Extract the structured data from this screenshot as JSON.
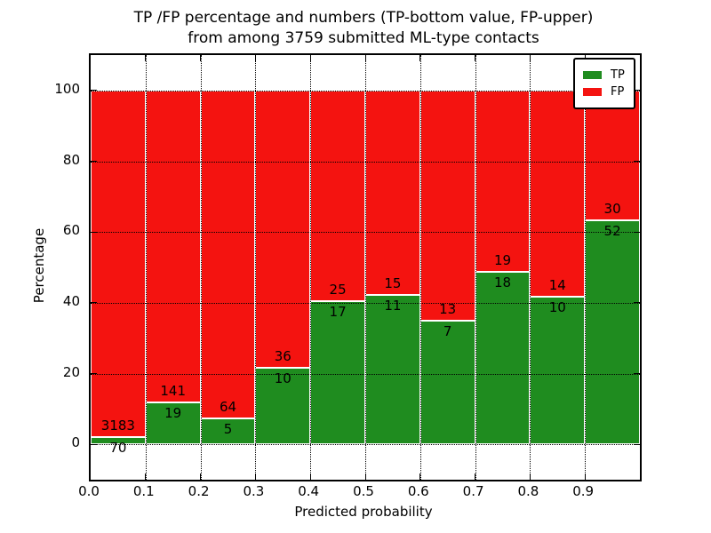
{
  "figure": {
    "title_line1": "TP /FP percentage and numbers (TP-bottom value, FP-upper)",
    "title_line2": "from among 3759 submitted ML-type contacts"
  },
  "chart_data": {
    "type": "bar",
    "stacked": true,
    "normalized_to_percent": true,
    "title": "TP /FP percentage and numbers (TP-bottom value, FP-upper) from among 3759 submitted ML-type contacts",
    "xlabel": "Predicted probability",
    "ylabel": "Percentage",
    "xlim": [
      0.0,
      1.0
    ],
    "ylim": [
      -10,
      110
    ],
    "bin_width": 0.1,
    "grid": true,
    "grid_style": "dotted",
    "legend_position": "upper-right",
    "total_contacts": 3759,
    "x_tick_labels": [
      "0.0",
      "0.1",
      "0.2",
      "0.3",
      "0.4",
      "0.5",
      "0.6",
      "0.7",
      "0.8",
      "0.9"
    ],
    "y_tick_values": [
      0,
      20,
      40,
      60,
      80,
      100
    ],
    "series": [
      {
        "name": "TP",
        "color": "#1f8c1f",
        "counts": [
          70,
          19,
          5,
          10,
          17,
          11,
          7,
          18,
          10,
          52
        ]
      },
      {
        "name": "FP",
        "color": "#f41310",
        "counts": [
          3183,
          141,
          64,
          36,
          25,
          15,
          13,
          19,
          14,
          30
        ]
      }
    ],
    "tp_percent_of_bin": [
      2.15,
      11.88,
      7.25,
      21.74,
      40.48,
      42.31,
      35.0,
      48.65,
      41.67,
      63.41
    ]
  },
  "legend": {
    "items": [
      {
        "label": "TP",
        "color": "#1f8c1f"
      },
      {
        "label": "FP",
        "color": "#f41310"
      }
    ]
  }
}
